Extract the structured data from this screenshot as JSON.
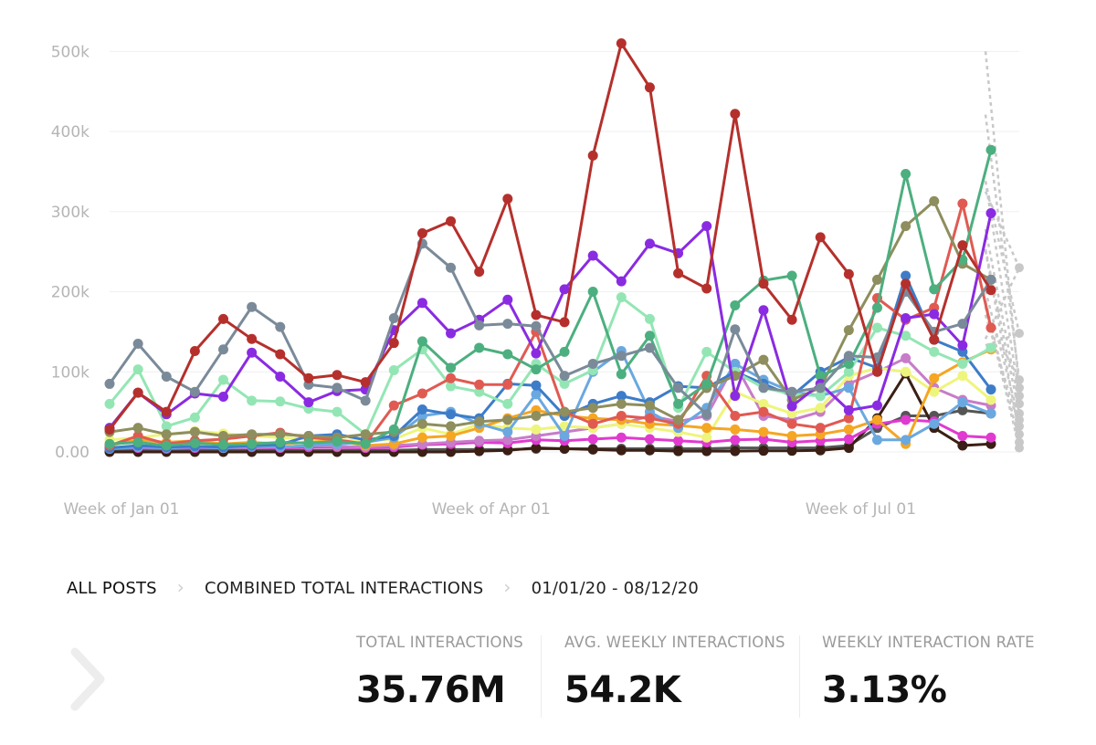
{
  "chart_data": {
    "type": "line",
    "x": [
      "Week of Jan 01",
      "Week of Jan 08",
      "Week of Jan 15",
      "Week of Jan 22",
      "Week of Jan 29",
      "Week of Feb 05",
      "Week of Feb 12",
      "Week of Feb 19",
      "Week of Feb 26",
      "Week of Mar 04",
      "Week of Mar 11",
      "Week of Mar 18",
      "Week of Mar 25",
      "Week of Apr 01",
      "Week of Apr 08",
      "Week of Apr 15",
      "Week of Apr 22",
      "Week of Apr 29",
      "Week of May 06",
      "Week of May 13",
      "Week of May 20",
      "Week of May 27",
      "Week of Jun 03",
      "Week of Jun 10",
      "Week of Jun 17",
      "Week of Jun 24",
      "Week of Jul 01",
      "Week of Jul 08",
      "Week of Jul 15",
      "Week of Jul 22",
      "Week of Jul 29",
      "Week of Aug 05"
    ],
    "x_ticks": [
      "Week of Jan 01",
      "Week of Apr 01",
      "Week of Jul 01"
    ],
    "y_ticks": [
      "0.00",
      "100k",
      "200k",
      "300k",
      "400k",
      "500k"
    ],
    "ylim": [
      0,
      530000
    ],
    "grid": true,
    "series": [
      {
        "color": "#b5302c",
        "values": [
          28000,
          74000,
          50000,
          126000,
          166000,
          141000,
          122000,
          92000,
          96000,
          87000,
          136000,
          273000,
          288000,
          225000,
          316000,
          171000,
          162000,
          370000,
          510000,
          455000,
          223000,
          204000,
          422000,
          210000,
          165000,
          268000,
          222000,
          100000,
          210000,
          140000,
          258000,
          202000
        ]
      },
      {
        "color": "#7a8a99",
        "values": [
          85000,
          135000,
          94000,
          75000,
          128000,
          181000,
          156000,
          84000,
          80000,
          64000,
          167000,
          260000,
          230000,
          158000,
          160000,
          157000,
          95000,
          110000,
          120000,
          130000,
          80000,
          47000,
          153000,
          80000,
          75000,
          80000,
          120000,
          118000,
          200000,
          150000,
          160000,
          215000
        ]
      },
      {
        "color": "#8a2be2",
        "values": [
          30000,
          74000,
          47000,
          73000,
          69000,
          124000,
          94000,
          62000,
          76000,
          78000,
          152000,
          186000,
          148000,
          165000,
          190000,
          123000,
          203000,
          245000,
          213000,
          260000,
          248000,
          282000,
          70000,
          177000,
          57000,
          85000,
          52000,
          58000,
          167000,
          172000,
          133000,
          298000
        ]
      },
      {
        "color": "#4caf7f",
        "values": [
          10000,
          12000,
          8000,
          11000,
          9000,
          10000,
          12000,
          11000,
          13000,
          10000,
          28000,
          138000,
          105000,
          130000,
          122000,
          103000,
          125000,
          200000,
          97000,
          145000,
          60000,
          85000,
          183000,
          214000,
          220000,
          95000,
          110000,
          180000,
          347000,
          203000,
          240000,
          377000
        ]
      },
      {
        "color": "#8e8e5e",
        "values": [
          25000,
          30000,
          22000,
          25000,
          20000,
          22000,
          22000,
          20000,
          18000,
          22000,
          25000,
          35000,
          32000,
          38000,
          40000,
          45000,
          50000,
          55000,
          60000,
          58000,
          40000,
          80000,
          95000,
          115000,
          65000,
          80000,
          152000,
          215000,
          282000,
          313000,
          235000,
          215000
        ]
      },
      {
        "color": "#e05a52",
        "values": [
          8000,
          20000,
          10000,
          14000,
          16000,
          20000,
          24000,
          18000,
          15000,
          10000,
          58000,
          73000,
          92000,
          84000,
          84000,
          150000,
          50000,
          35000,
          45000,
          42000,
          35000,
          95000,
          45000,
          50000,
          35000,
          30000,
          42000,
          192000,
          165000,
          180000,
          310000,
          155000
        ]
      },
      {
        "color": "#93e6b4",
        "values": [
          60000,
          103000,
          32000,
          43000,
          90000,
          64000,
          63000,
          54000,
          50000,
          22000,
          102000,
          128000,
          82000,
          75000,
          60000,
          110000,
          85000,
          102000,
          193000,
          166000,
          55000,
          125000,
          100000,
          80000,
          72000,
          70000,
          100000,
          155000,
          145000,
          125000,
          110000,
          130000
        ]
      },
      {
        "color": "#3d7cc9",
        "values": [
          5000,
          8000,
          6000,
          7000,
          6000,
          8000,
          9000,
          20000,
          22000,
          15000,
          20000,
          53000,
          47000,
          42000,
          85000,
          83000,
          45000,
          60000,
          70000,
          62000,
          82000,
          80000,
          100000,
          85000,
          70000,
          100000,
          118000,
          105000,
          220000,
          140000,
          125000,
          78000
        ]
      },
      {
        "color": "#6aa8e0",
        "values": [
          4000,
          6000,
          5000,
          6000,
          5000,
          7000,
          6000,
          8000,
          10000,
          12000,
          18000,
          45000,
          50000,
          35000,
          25000,
          72000,
          20000,
          100000,
          126000,
          50000,
          30000,
          55000,
          110000,
          90000,
          75000,
          70000,
          80000,
          15000,
          15000,
          35000,
          62000,
          48000
        ]
      },
      {
        "color": "#f5a623",
        "values": [
          8000,
          15000,
          12000,
          14000,
          10000,
          12000,
          10000,
          12000,
          14000,
          8000,
          10000,
          18000,
          20000,
          30000,
          42000,
          52000,
          45000,
          42000,
          40000,
          35000,
          33000,
          30000,
          28000,
          25000,
          20000,
          22000,
          28000,
          40000,
          10000,
          92000,
          112000,
          128000
        ]
      },
      {
        "color": "#eef57c",
        "values": [
          15000,
          18000,
          22000,
          26000,
          23000,
          20000,
          18000,
          16000,
          15000,
          14000,
          16000,
          30000,
          22000,
          35000,
          30000,
          28000,
          32000,
          30000,
          35000,
          30000,
          25000,
          18000,
          75000,
          60000,
          48000,
          55000,
          95000,
          105000,
          100000,
          75000,
          95000,
          65000
        ]
      },
      {
        "color": "#c77cc9",
        "values": [
          5000,
          6000,
          5000,
          6000,
          5000,
          7000,
          6000,
          8000,
          7000,
          6000,
          8000,
          10000,
          12000,
          14000,
          15000,
          20000,
          25000,
          30000,
          35000,
          45000,
          38000,
          45000,
          110000,
          45000,
          40000,
          50000,
          85000,
          100000,
          117000,
          80000,
          65000,
          58000
        ]
      },
      {
        "color": "#e03ad0",
        "values": [
          4000,
          5000,
          4000,
          5000,
          5000,
          6000,
          5000,
          6000,
          6000,
          5000,
          6000,
          9000,
          10000,
          12000,
          11000,
          15000,
          14000,
          16000,
          18000,
          16000,
          14000,
          12000,
          15000,
          16000,
          12000,
          14000,
          16000,
          35000,
          40000,
          38000,
          20000,
          18000
        ]
      },
      {
        "color": "#3b1f14",
        "values": [
          0,
          0,
          0,
          0,
          0,
          0,
          0,
          0,
          0,
          0,
          0,
          0,
          0,
          1000,
          2000,
          5000,
          4000,
          3000,
          2000,
          2000,
          1000,
          1000,
          1000,
          1500,
          1500,
          2000,
          5000,
          42000,
          98000,
          30000,
          8000,
          10000
        ]
      },
      {
        "color": "#555555",
        "values": [
          2000,
          2000,
          2000,
          2000,
          2000,
          2000,
          2000,
          2000,
          2000,
          2000,
          2000,
          3000,
          3000,
          3000,
          3000,
          4000,
          4000,
          4000,
          4000,
          4000,
          4000,
          4000,
          5000,
          5000,
          5000,
          5000,
          8000,
          30000,
          45000,
          45000,
          52000,
          48000
        ]
      }
    ],
    "projection": {
      "color": "#c8c8c8",
      "values": [
        230000,
        148000,
        90000,
        80000,
        70000,
        60000,
        48000,
        40000,
        32000,
        22000,
        12000,
        5000
      ]
    }
  },
  "breadcrumb": {
    "items": [
      "ALL POSTS",
      "COMBINED TOTAL INTERACTIONS",
      "01/01/20 - 08/12/20"
    ],
    "separator": "›"
  },
  "stats": [
    {
      "label": "TOTAL INTERACTIONS",
      "value": "35.76M"
    },
    {
      "label": "AVG. WEEKLY INTERACTIONS",
      "value": "54.2K"
    },
    {
      "label": "WEEKLY INTERACTION RATE",
      "value": "3.13%"
    }
  ],
  "icons": {
    "back": "chevron-left-icon"
  }
}
